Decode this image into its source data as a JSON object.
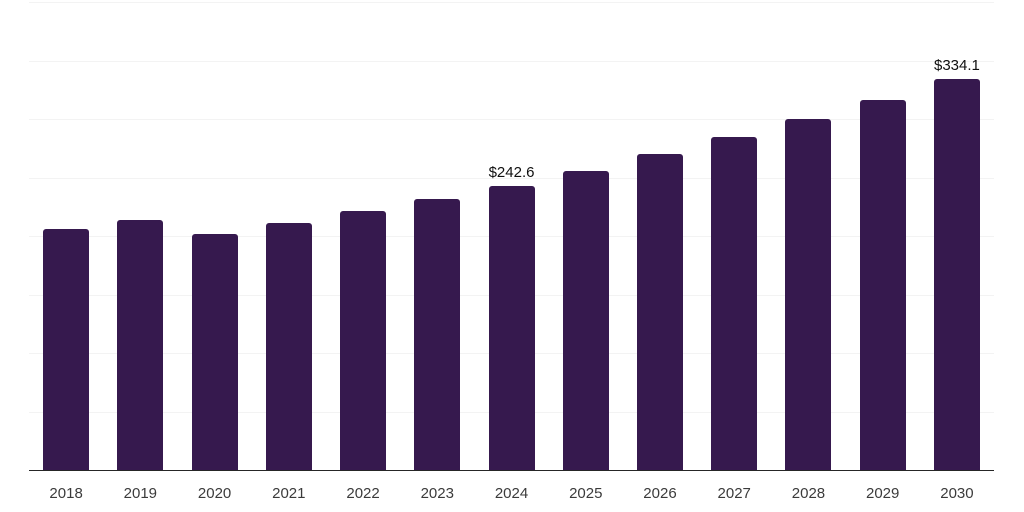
{
  "chart_data": {
    "type": "bar",
    "title": "",
    "xlabel": "",
    "ylabel": "",
    "categories": [
      "2018",
      "2019",
      "2020",
      "2021",
      "2022",
      "2023",
      "2024",
      "2025",
      "2026",
      "2027",
      "2028",
      "2029",
      "2030"
    ],
    "values": [
      206,
      214,
      202,
      211,
      221,
      232,
      242.6,
      255.9,
      269.9,
      284.6,
      300.2,
      316.6,
      334.1
    ],
    "bar_labels": [
      "",
      "",
      "",
      "",
      "",
      "",
      "$242.6",
      "",
      "",
      "",
      "",
      "",
      "$334.1"
    ],
    "ylim": [
      0,
      400
    ],
    "ytick_step": 50,
    "grid": true,
    "y_tick_labels_shown": false,
    "legend": false,
    "colors": {
      "bar": "#36194e",
      "gridline": "#f3f3f3",
      "axis": "#262626",
      "x_tick_label": "#3b3b3b",
      "value_label": "#101010",
      "background": "#ffffff"
    }
  }
}
